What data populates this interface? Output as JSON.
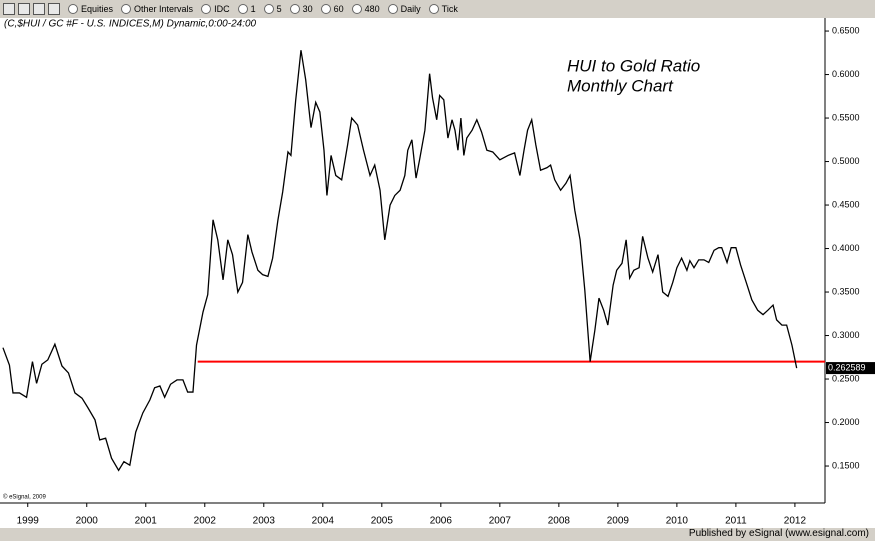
{
  "toolbar": {
    "items": [
      "Equities",
      "Other Intervals",
      "IDC",
      "1",
      "5",
      "30",
      "60",
      "480",
      "Daily",
      "Tick"
    ]
  },
  "publisher": "Published by eSignal (www.esignal.com)",
  "chart_data": {
    "type": "line",
    "header": "(C,$HUI / GC #F - U.S. INDICES,M) Dynamic,0:00-24:00",
    "title": [
      "HUI to Gold Ratio",
      "Monthly Chart"
    ],
    "copyright": "© eSignal, 2009",
    "x": [
      1998.58,
      1998.69,
      1998.75,
      1998.86,
      1998.98,
      1999.08,
      1999.15,
      1999.24,
      1999.34,
      1999.46,
      1999.58,
      1999.69,
      1999.8,
      1999.92,
      2000.02,
      2000.14,
      2000.22,
      2000.32,
      2000.42,
      2000.54,
      2000.63,
      2000.73,
      2000.83,
      2000.95,
      2001.07,
      2001.15,
      2001.24,
      2001.32,
      2001.42,
      2001.53,
      2001.63,
      2001.71,
      2001.8,
      2001.86,
      2001.97,
      2002.05,
      2002.14,
      2002.22,
      2002.31,
      2002.39,
      2002.47,
      2002.56,
      2002.64,
      2002.73,
      2002.8,
      2002.9,
      2002.98,
      2003.07,
      2003.15,
      2003.24,
      2003.32,
      2003.41,
      2003.46,
      2003.54,
      2003.63,
      2003.71,
      2003.8,
      2003.88,
      2003.95,
      2004.02,
      2004.07,
      2004.14,
      2004.22,
      2004.32,
      2004.42,
      2004.49,
      2004.59,
      2004.69,
      2004.8,
      2004.88,
      2004.97,
      2005.05,
      2005.14,
      2005.22,
      2005.31,
      2005.39,
      2005.44,
      2005.51,
      2005.58,
      2005.64,
      2005.73,
      2005.81,
      2005.86,
      2005.93,
      2005.98,
      2006.05,
      2006.12,
      2006.19,
      2006.24,
      2006.29,
      2006.34,
      2006.39,
      2006.44,
      2006.53,
      2006.61,
      2006.69,
      2006.78,
      2006.88,
      2007.0,
      2007.14,
      2007.25,
      2007.34,
      2007.41,
      2007.47,
      2007.54,
      2007.61,
      2007.69,
      2007.8,
      2007.86,
      2007.93,
      2008.03,
      2008.12,
      2008.19,
      2008.27,
      2008.36,
      2008.44,
      2008.53,
      2008.61,
      2008.68,
      2008.76,
      2008.83,
      2008.92,
      2008.98,
      2009.07,
      2009.14,
      2009.2,
      2009.27,
      2009.36,
      2009.42,
      2009.51,
      2009.59,
      2009.68,
      2009.76,
      2009.85,
      2009.93,
      2010.0,
      2010.08,
      2010.17,
      2010.22,
      2010.29,
      2010.37,
      2010.46,
      2010.54,
      2010.63,
      2010.71,
      2010.76,
      2010.85,
      2010.92,
      2011.0,
      2011.08,
      2011.19,
      2011.27,
      2011.37,
      2011.46,
      2011.54,
      2011.63,
      2011.69,
      2011.78,
      2011.86,
      2011.95,
      2012.03
    ],
    "series": [
      {
        "color": "#000000",
        "values": [
          0.286,
          0.266,
          0.234,
          0.234,
          0.229,
          0.27,
          0.245,
          0.267,
          0.272,
          0.29,
          0.265,
          0.257,
          0.234,
          0.228,
          0.217,
          0.203,
          0.18,
          0.182,
          0.159,
          0.145,
          0.155,
          0.151,
          0.189,
          0.211,
          0.226,
          0.24,
          0.242,
          0.229,
          0.244,
          0.249,
          0.249,
          0.235,
          0.235,
          0.289,
          0.327,
          0.347,
          0.433,
          0.41,
          0.364,
          0.41,
          0.393,
          0.35,
          0.361,
          0.416,
          0.396,
          0.375,
          0.37,
          0.368,
          0.389,
          0.433,
          0.465,
          0.511,
          0.507,
          0.57,
          0.628,
          0.594,
          0.539,
          0.568,
          0.557,
          0.513,
          0.461,
          0.507,
          0.484,
          0.479,
          0.519,
          0.55,
          0.542,
          0.513,
          0.484,
          0.496,
          0.467,
          0.41,
          0.45,
          0.461,
          0.467,
          0.484,
          0.513,
          0.525,
          0.481,
          0.502,
          0.536,
          0.601,
          0.573,
          0.548,
          0.576,
          0.571,
          0.527,
          0.548,
          0.536,
          0.513,
          0.55,
          0.507,
          0.527,
          0.536,
          0.548,
          0.534,
          0.513,
          0.511,
          0.502,
          0.507,
          0.51,
          0.484,
          0.513,
          0.536,
          0.548,
          0.519,
          0.49,
          0.493,
          0.496,
          0.479,
          0.467,
          0.475,
          0.484,
          0.444,
          0.41,
          0.352,
          0.27,
          0.306,
          0.343,
          0.329,
          0.312,
          0.358,
          0.375,
          0.383,
          0.41,
          0.366,
          0.375,
          0.378,
          0.414,
          0.389,
          0.373,
          0.393,
          0.35,
          0.345,
          0.361,
          0.378,
          0.389,
          0.375,
          0.386,
          0.378,
          0.387,
          0.387,
          0.384,
          0.398,
          0.401,
          0.401,
          0.384,
          0.401,
          0.401,
          0.381,
          0.358,
          0.341,
          0.329,
          0.324,
          0.329,
          0.335,
          0.318,
          0.312,
          0.312,
          0.289,
          0.262589
        ]
      }
    ],
    "hline": {
      "value": 0.27,
      "x_start": 2001.88,
      "color": "#ff0000"
    },
    "xlim": [
      1998.53,
      2012.51
    ],
    "xticks": [
      1999,
      2000,
      2001,
      2002,
      2003,
      2004,
      2005,
      2006,
      2007,
      2008,
      2009,
      2010,
      2011,
      2012
    ],
    "ylim": [
      0.1075,
      0.665
    ],
    "yticks": [
      {
        "value": 0.15,
        "label": "0.1500"
      },
      {
        "value": 0.2,
        "label": "0.2000"
      },
      {
        "value": 0.25,
        "label": "0.2500"
      },
      {
        "value": 0.3,
        "label": "0.3000"
      },
      {
        "value": 0.35,
        "label": "0.3500"
      },
      {
        "value": 0.4,
        "label": "0.4000"
      },
      {
        "value": 0.45,
        "label": "0.4500"
      },
      {
        "value": 0.5,
        "label": "0.5000"
      },
      {
        "value": 0.55,
        "label": "0.5500"
      },
      {
        "value": 0.6,
        "label": "0.6000"
      },
      {
        "value": 0.65,
        "label": "0.6500"
      }
    ],
    "grid": false
  }
}
